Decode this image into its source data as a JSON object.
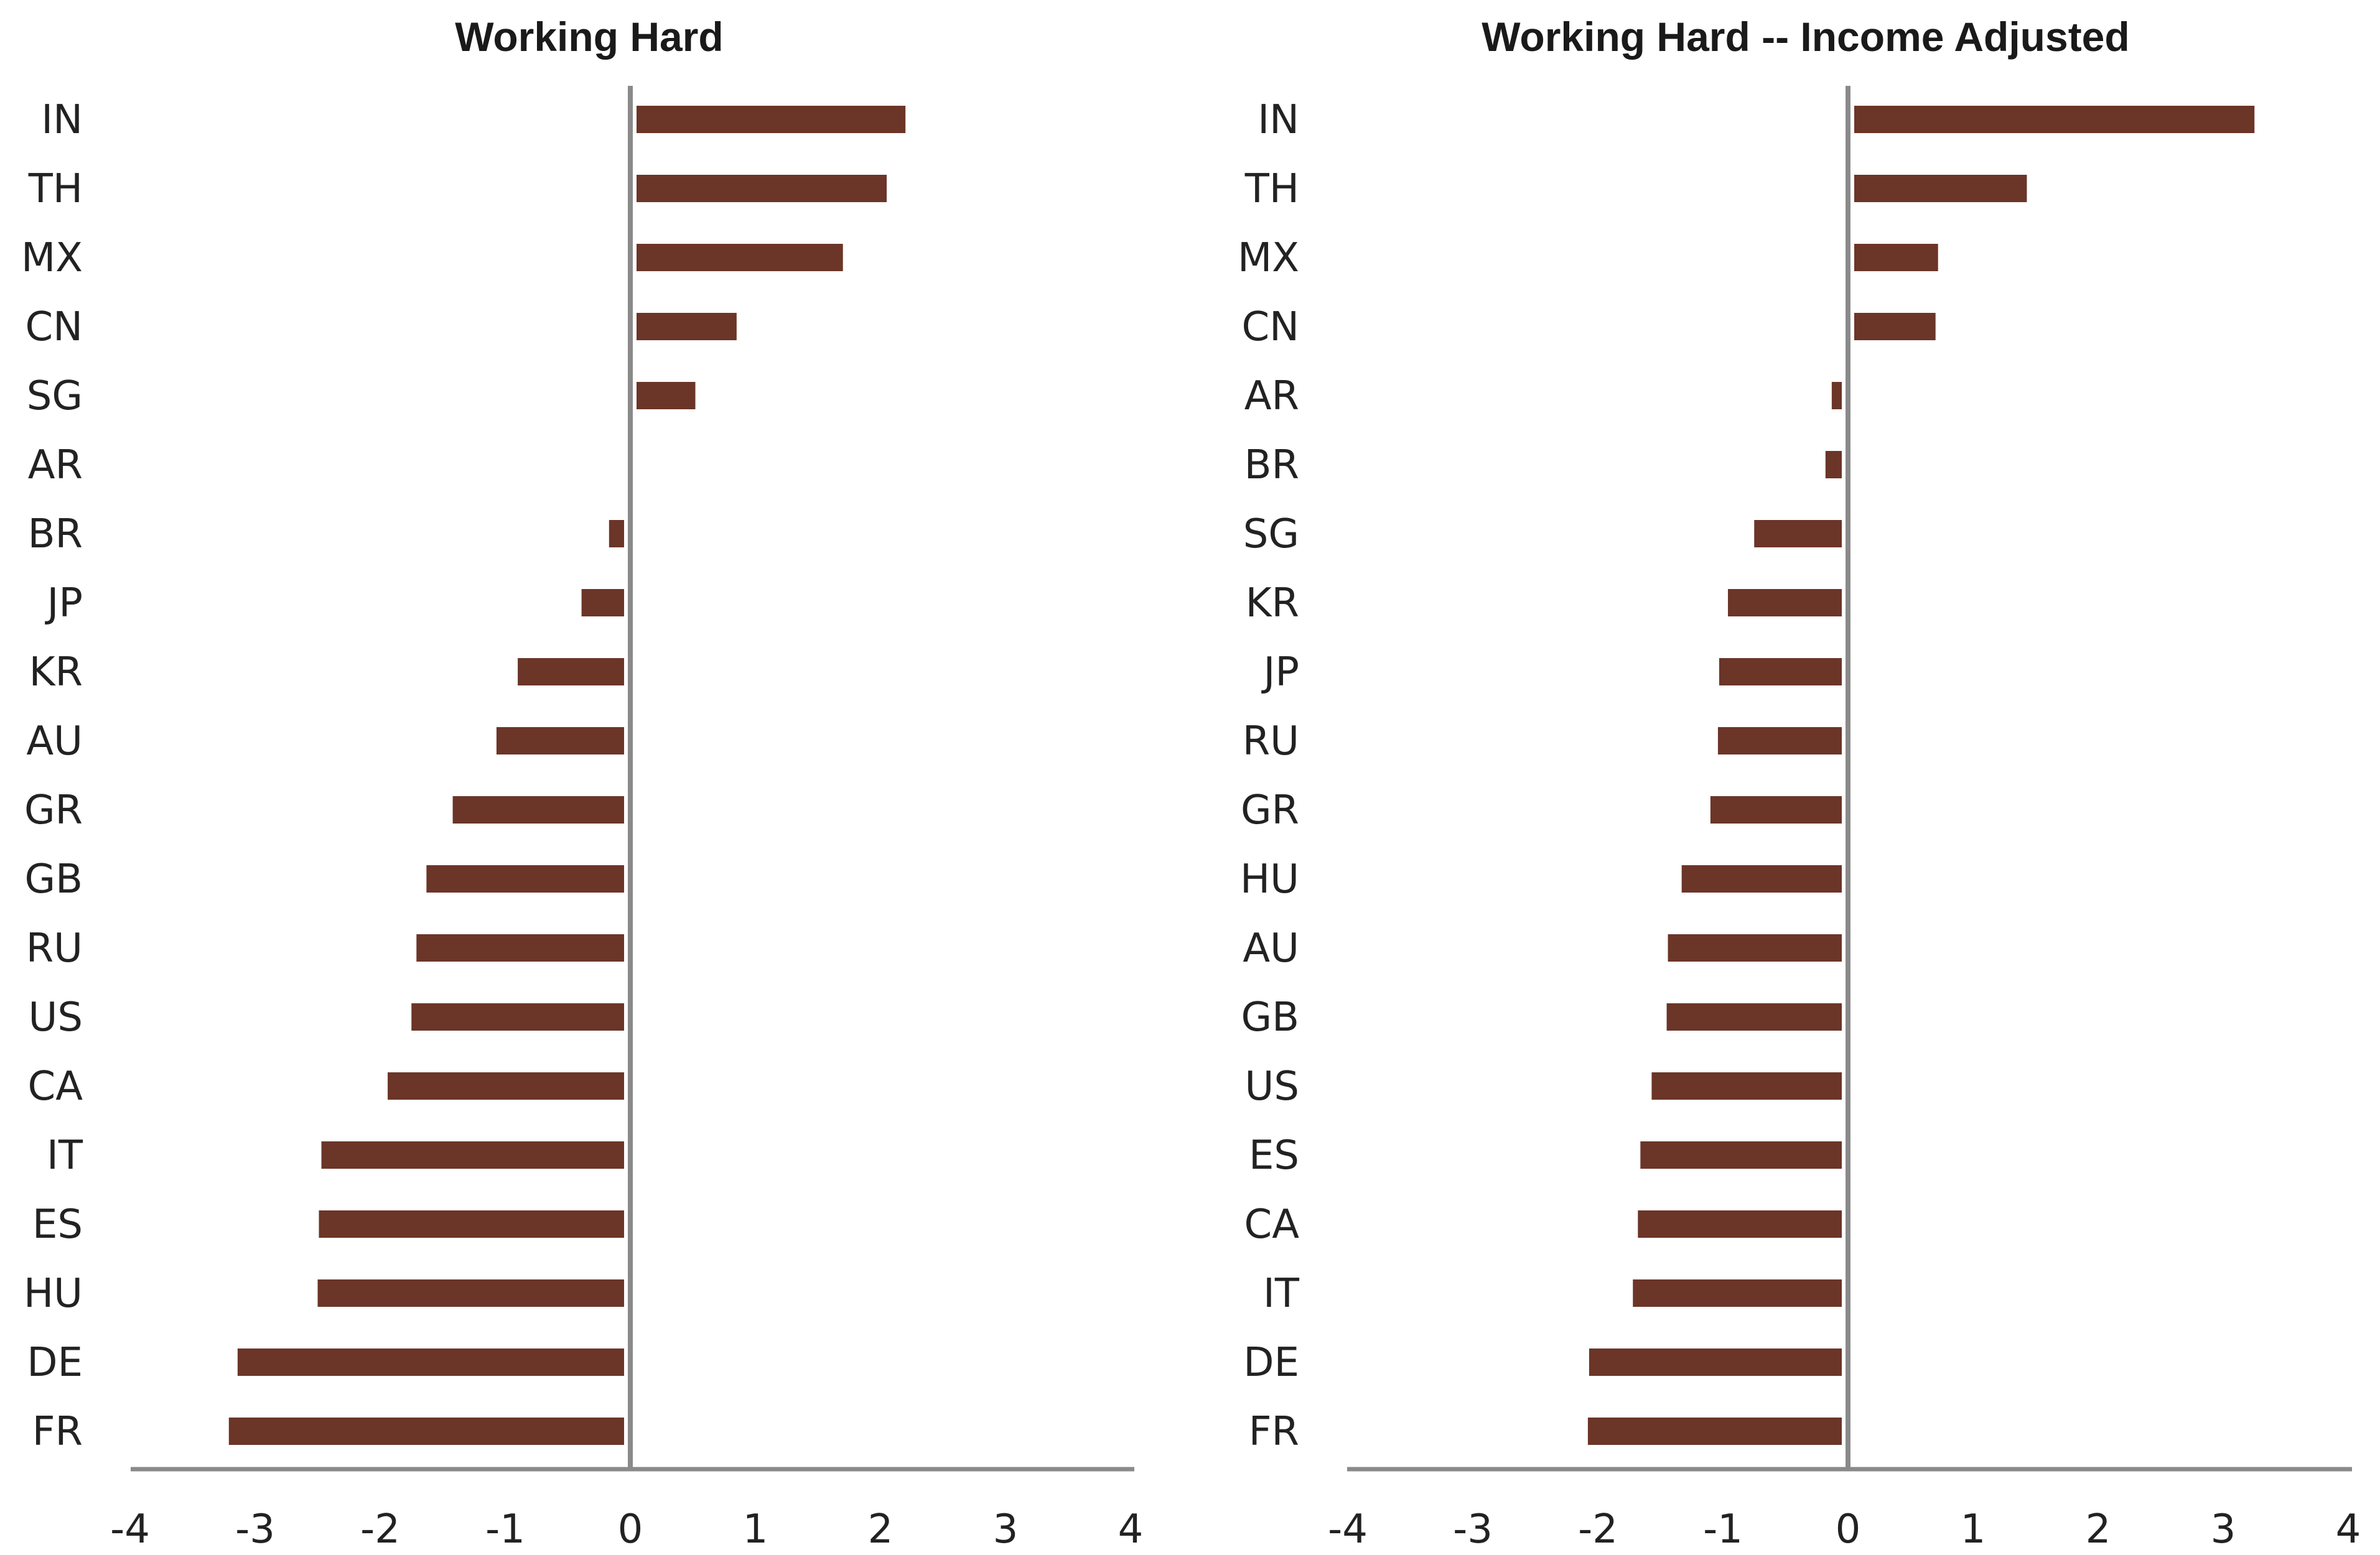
{
  "chart_data": [
    {
      "type": "bar",
      "orientation": "horizontal",
      "title": "Working Hard",
      "xlabel": "",
      "ylabel": "",
      "xlim": [
        -4,
        4
      ],
      "xticks": [
        "-4",
        "-3",
        "-2",
        "-1",
        "0",
        "1",
        "2",
        "3",
        "4"
      ],
      "categories": [
        "IN",
        "TH",
        "MX",
        "CN",
        "SG",
        "AR",
        "BR",
        "JP",
        "KR",
        "AU",
        "GR",
        "GB",
        "RU",
        "US",
        "CA",
        "IT",
        "ES",
        "HU",
        "DE",
        "FR"
      ],
      "values": [
        2.2,
        2.05,
        1.7,
        0.85,
        0.52,
        0.0,
        -0.17,
        -0.39,
        -0.9,
        -1.07,
        -1.42,
        -1.63,
        -1.71,
        -1.75,
        -1.94,
        -2.47,
        -2.49,
        -2.5,
        -3.14,
        -3.21
      ],
      "bar_color": "#6b3528",
      "grid": false
    },
    {
      "type": "bar",
      "orientation": "horizontal",
      "title": "Working Hard -- Income Adjusted",
      "xlabel": "",
      "ylabel": "",
      "xlim": [
        -4,
        4
      ],
      "xticks": [
        "-4",
        "-3",
        "-2",
        "-1",
        "0",
        "1",
        "2",
        "3",
        "4"
      ],
      "categories": [
        "IN",
        "TH",
        "MX",
        "CN",
        "AR",
        "BR",
        "SG",
        "KR",
        "JP",
        "RU",
        "GR",
        "HU",
        "AU",
        "GB",
        "US",
        "ES",
        "CA",
        "IT",
        "DE",
        "FR"
      ],
      "values": [
        3.25,
        1.43,
        0.72,
        0.7,
        -0.13,
        -0.18,
        -0.75,
        -0.96,
        -1.03,
        -1.04,
        -1.1,
        -1.33,
        -1.44,
        -1.45,
        -1.57,
        -1.66,
        -1.68,
        -1.72,
        -2.07,
        -2.08
      ],
      "bar_color": "#6b3528",
      "grid": false
    }
  ]
}
